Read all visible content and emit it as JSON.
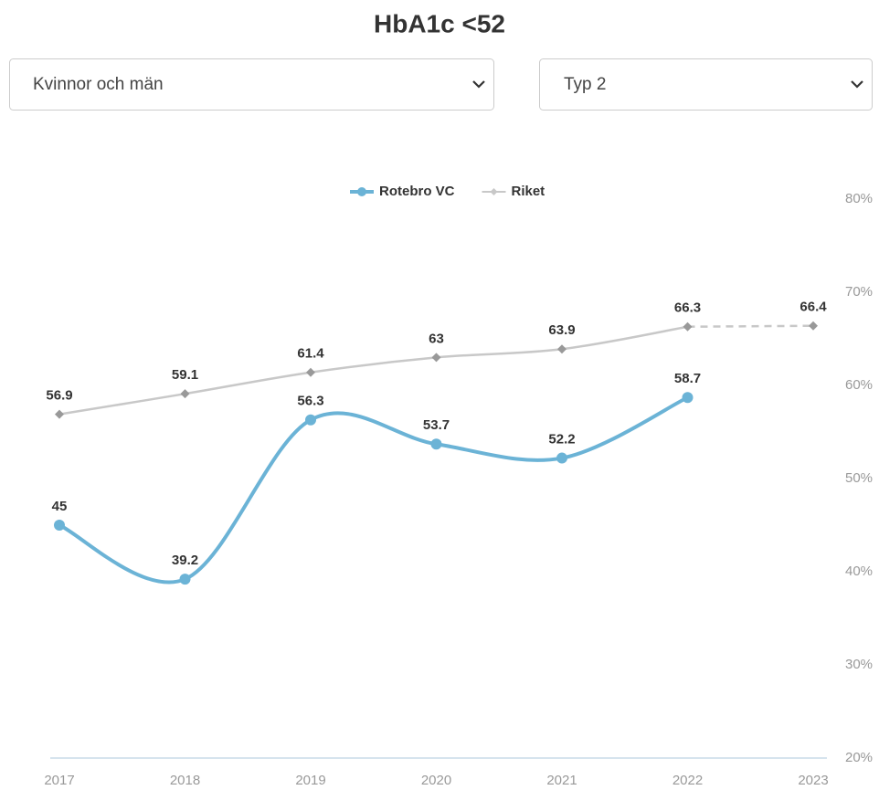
{
  "controls": {
    "gender": "Kvinnor och män",
    "diabetes_type": "Typ 2"
  },
  "chart_data": {
    "type": "line",
    "title": "HbA1c <52",
    "categories": [
      "2017",
      "2018",
      "2019",
      "2020",
      "2021",
      "2022",
      "2023"
    ],
    "series": [
      {
        "name": "Rotebro VC",
        "color": "#6bb3d6",
        "values": [
          45,
          39.2,
          56.3,
          53.7,
          52.2,
          58.7,
          null
        ]
      },
      {
        "name": "Riket",
        "color": "#c8c8c8",
        "marker_color": "#999999",
        "values": [
          56.9,
          59.1,
          61.4,
          63,
          63.9,
          66.3,
          66.4
        ],
        "line_style_last_segment": "dashed"
      }
    ],
    "ylim": [
      20,
      80
    ],
    "yticks": [
      {
        "value": 20,
        "label": "20%"
      },
      {
        "value": 30,
        "label": "30%"
      },
      {
        "value": 40,
        "label": "40%"
      },
      {
        "value": 50,
        "label": "50%"
      },
      {
        "value": 60,
        "label": "60%"
      },
      {
        "value": 70,
        "label": "70%"
      },
      {
        "value": 80,
        "label": "80%"
      }
    ],
    "y_axis_side": "right",
    "smooth": true,
    "legend": "top"
  }
}
